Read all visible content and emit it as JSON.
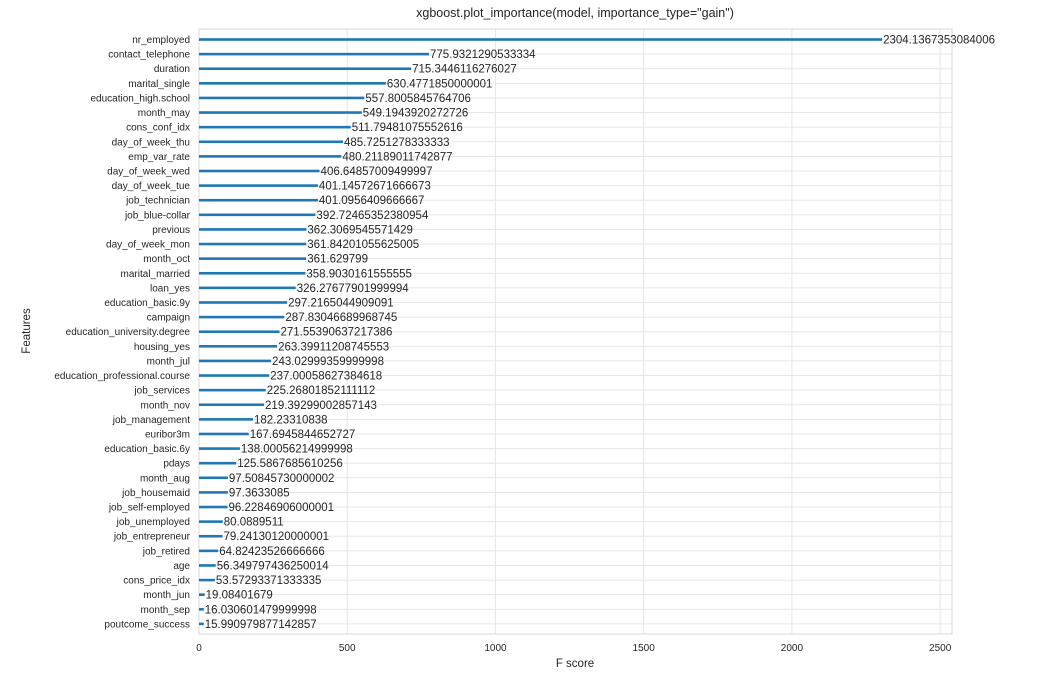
{
  "chart_data": {
    "type": "bar",
    "orientation": "horizontal",
    "title": "xgboost.plot_importance(model, importance_type=\"gain\")",
    "xlabel": "F score",
    "ylabel": "Features",
    "xlim": [
      0,
      2540
    ],
    "xticks": [
      "0",
      "500",
      "1000",
      "1500",
      "2000",
      "2500"
    ],
    "grid": true,
    "bar_color": "#1f77b4",
    "categories": [
      "nr_employed",
      "contact_telephone",
      "duration",
      "marital_single",
      "education_high.school",
      "month_may",
      "cons_conf_idx",
      "day_of_week_thu",
      "emp_var_rate",
      "day_of_week_wed",
      "day_of_week_tue",
      "job_technician",
      "job_blue-collar",
      "previous",
      "day_of_week_mon",
      "month_oct",
      "marital_married",
      "loan_yes",
      "education_basic.9y",
      "campaign",
      "education_university.degree",
      "housing_yes",
      "month_jul",
      "education_professional.course",
      "job_services",
      "month_nov",
      "job_management",
      "euribor3m",
      "education_basic.6y",
      "pdays",
      "month_aug",
      "job_housemaid",
      "job_self-employed",
      "job_unemployed",
      "job_entrepreneur",
      "job_retired",
      "age",
      "cons_price_idx",
      "month_jun",
      "month_sep",
      "poutcome_success"
    ],
    "values": [
      2304.1367353084006,
      775.9321290533334,
      715.3446116276027,
      630.4771850000001,
      557.8005845764706,
      549.1943920272726,
      511.79481075552616,
      485.7251278333333,
      480.21189011742877,
      406.64857009499997,
      401.14572671666673,
      401.0956409666667,
      392.72465352380954,
      362.3069545571429,
      361.84201055625005,
      361.629799,
      358.9030161555555,
      326.27677901999994,
      297.2165044909091,
      287.83046689968745,
      271.55390637217386,
      263.39911208745553,
      243.02999359999998,
      237.00058627384618,
      225.26801852111112,
      219.39299002857143,
      182.23310838,
      167.6945844652727,
      138.00056214999998,
      125.5867685610256,
      97.50845730000002,
      97.3633085,
      96.22846906000001,
      80.0889511,
      79.24130120000001,
      64.82423526666666,
      56.349797436250014,
      53.57293371333335,
      19.08401679,
      16.030601479999998,
      15.990979877142857
    ],
    "value_labels": [
      "2304.1367353084006",
      "775.9321290533334",
      "715.3446116276027",
      "630.4771850000001",
      "557.8005845764706",
      "549.1943920272726",
      "511.79481075552616",
      "485.7251278333333",
      "480.21189011742877",
      "406.64857009499997",
      "401.14572671666673",
      "401.0956409666667",
      "392.72465352380954",
      "362.3069545571429",
      "361.84201055625005",
      "361.629799",
      "358.9030161555555",
      "326.27677901999994",
      "297.2165044909091",
      "287.83046689968745",
      "271.55390637217386",
      "263.39911208745553",
      "243.02999359999998",
      "237.00058627384618",
      "225.26801852111112",
      "219.39299002857143",
      "182.23310838",
      "167.6945844652727",
      "138.00056214999998",
      "125.5867685610256",
      "97.50845730000002",
      "97.3633085",
      "96.22846906000001",
      "80.0889511",
      "79.24130120000001",
      "64.82423526666666",
      "56.349797436250014",
      "53.57293371333335",
      "19.08401679",
      "16.030601479999998",
      "15.990979877142857"
    ]
  }
}
